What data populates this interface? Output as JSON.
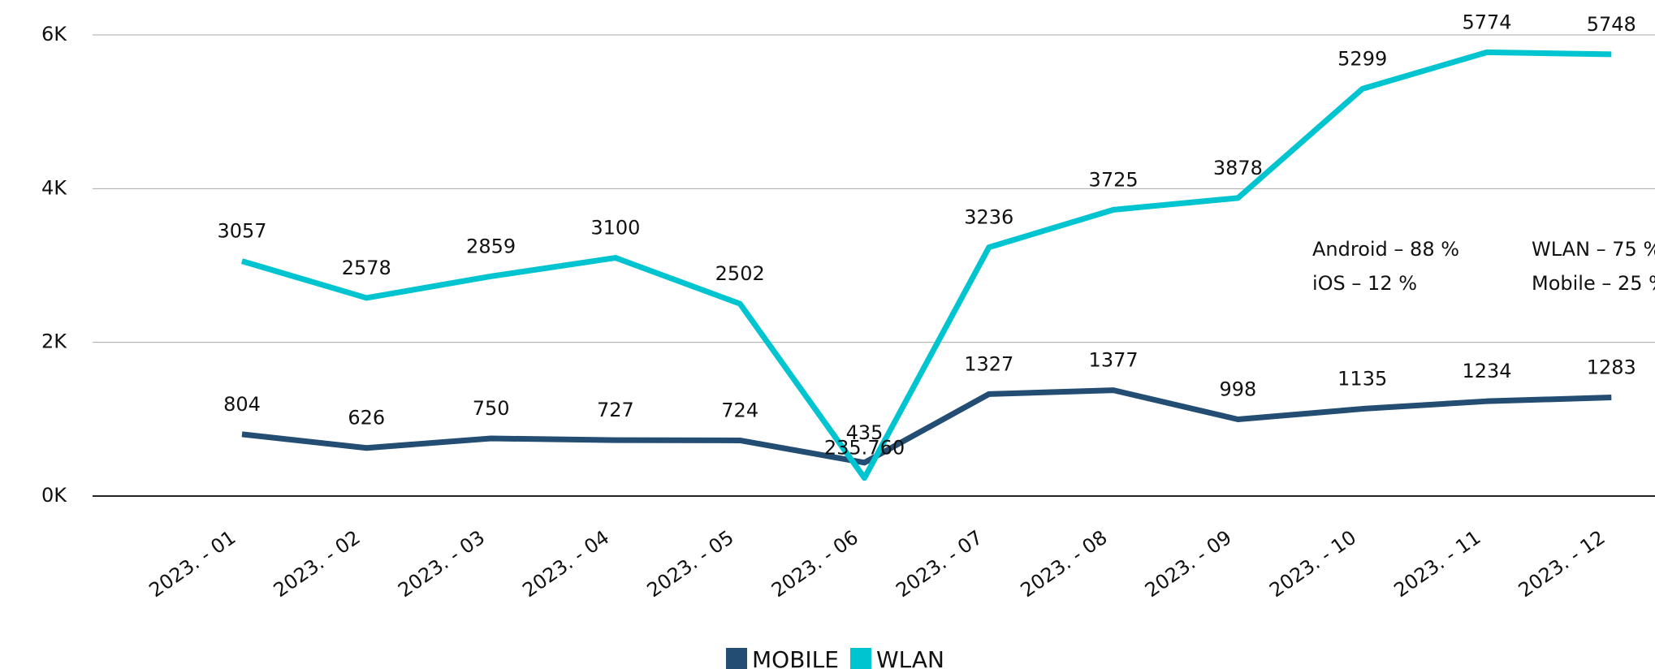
{
  "chart_data": {
    "type": "line",
    "categories": [
      "2023. - 01",
      "2023. - 02",
      "2023. - 03",
      "2023. - 04",
      "2023. - 05",
      "2023. - 06",
      "2023. - 07",
      "2023. - 08",
      "2023. - 09",
      "2023. - 10",
      "2023. - 11",
      "2023. - 12"
    ],
    "series": [
      {
        "name": "MOBILE",
        "color": "#234d72",
        "values": [
          804,
          626,
          750,
          727,
          724,
          435,
          1327,
          1377,
          998,
          1135,
          1234,
          1283
        ]
      },
      {
        "name": "WLAN",
        "color": "#00c4cf",
        "values": [
          3057,
          2578,
          2859,
          3100,
          2502,
          235.76,
          3236,
          3725,
          3878,
          5299,
          5774,
          5748
        ],
        "value_labels": [
          "3057",
          "2578",
          "2859",
          "3100",
          "2502",
          "235.760",
          "3236",
          "3725",
          "3878",
          "5299",
          "5774",
          "5748"
        ]
      }
    ],
    "ylim": [
      0,
      6000
    ],
    "yticks": [
      {
        "value": 0,
        "label": "0K"
      },
      {
        "value": 2000,
        "label": "2K"
      },
      {
        "value": 4000,
        "label": "4K"
      },
      {
        "value": 6000,
        "label": "6K"
      }
    ],
    "grid": true,
    "legend": "bottom",
    "annotations": [
      "Android – 88 %",
      "iOS – 12 %",
      "WLAN – 75 %",
      "Mobile – 25 %"
    ]
  }
}
